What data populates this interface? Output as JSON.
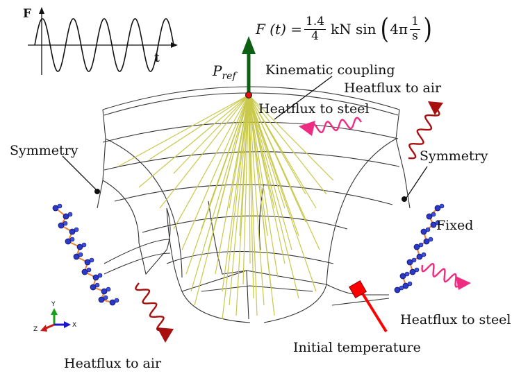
{
  "inset": {
    "y_label": "F",
    "x_label": "t"
  },
  "formula": {
    "lhs": "F (t) =",
    "coef_num": "1.4",
    "coef_den": "4",
    "unit": "kN sin",
    "arg_prefix": "4π",
    "arg_num": "1",
    "arg_den": "s"
  },
  "ref_point": {
    "symbol": "P",
    "subscript": "ref"
  },
  "labels": {
    "kinematic_coupling": "Kinematic coupling",
    "heatflux_air_top": "Heatflux to air",
    "heatflux_steel_top": "Heatflux to steel",
    "symmetry_left": "Symmetry",
    "symmetry_right": "Symmetry",
    "fixed": "Fixed",
    "heatflux_steel_right": "Heatflux to steel",
    "initial_temperature": "Initial temperature",
    "heatflux_air_bottom": "Heatflux to air"
  },
  "triad": {
    "x": "X",
    "y": "Y",
    "z": "Z"
  },
  "colors": {
    "load_arrow": "#0d5f14",
    "coupling_lines": "#c8c84a",
    "ref_point": "#e01010",
    "heatflux_air": "#a80f0f",
    "heatflux_steel": "#ee2d82",
    "temperature": "#ff0000",
    "bc_symbols": "#2a38c8",
    "bc_links": "#f08030",
    "mesh": "#333333"
  }
}
